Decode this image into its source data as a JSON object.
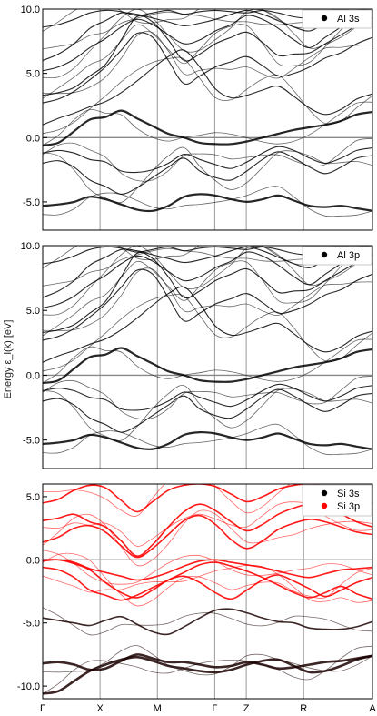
{
  "figure": {
    "ylabel": "Energy ε_i(k) [eV]",
    "kpoints": [
      "Γ",
      "X",
      "M",
      "Γ",
      "Z",
      "R",
      "A"
    ]
  },
  "chart_data": [
    {
      "type": "line",
      "title": "",
      "legend": [
        {
          "label": "Al 3s",
          "color": "#000000"
        }
      ],
      "legend_position": "top-right",
      "ylim": [
        -7.2,
        10.0
      ],
      "yticks": [
        "10.0",
        "5.0",
        "0.0",
        "-5.0"
      ],
      "ytick_values": [
        10,
        5,
        0,
        -5
      ],
      "fermi_level": 0,
      "kpoints": [
        "Γ",
        "X",
        "M",
        "Γ",
        "Z",
        "R",
        "A"
      ],
      "kpoint_positions": [
        0,
        1,
        2,
        3,
        3.55,
        4.55,
        5.75
      ],
      "series_color": "#000000",
      "bands": [
        [
          -0.6,
          -0.4,
          0.5,
          1.4,
          1.6,
          2.1,
          1.5,
          0.9,
          0.3,
          0.0,
          -0.4,
          -0.5,
          -0.5,
          -0.3,
          0.0,
          0.3,
          0.6,
          0.8,
          1.0,
          1.3,
          1.8,
          2.0
        ],
        [
          -5.3,
          -5.2,
          -5.0,
          -4.6,
          -4.8,
          -5.2,
          -5.6,
          -5.7,
          -5.3,
          -4.6,
          -4.4,
          -4.5,
          -4.8,
          -5.0,
          -4.8,
          -4.5,
          -4.9,
          -5.3,
          -5.4,
          -5.3,
          -5.5,
          -5.7
        ],
        [
          -2.0,
          -1.8,
          -2.3,
          -3.3,
          -3.8,
          -4.4,
          -3.9,
          -3.1,
          -2.3,
          -1.6,
          -2.6,
          -3.1,
          -3.3,
          -2.6,
          -1.7,
          -1.1,
          -1.6,
          -2.3,
          -2.8,
          -2.3,
          -1.6,
          -1.4
        ],
        [
          -1.2,
          -1.0,
          -1.2,
          -1.7,
          -1.9,
          -2.6,
          -2.7,
          -2.5,
          -2.0,
          -1.3,
          -1.7,
          -2.1,
          -2.4,
          -1.9,
          -1.2,
          -0.7,
          -1.0,
          -1.6,
          -2.0,
          -1.6,
          -1.0,
          -0.8
        ],
        [
          1.0,
          1.5,
          1.9,
          2.4,
          2.8,
          3.5,
          4.4,
          5.4,
          6.3,
          6.8,
          5.5,
          3.8,
          3.1,
          3.3,
          3.7,
          4.0,
          3.2,
          2.3,
          1.8,
          2.2,
          3.0,
          3.4
        ],
        [
          2.7,
          3.0,
          3.6,
          4.5,
          5.5,
          6.8,
          8.1,
          7.8,
          6.0,
          4.2,
          4.8,
          5.5,
          5.9,
          6.3,
          5.6,
          4.8,
          5.0,
          5.5,
          6.2,
          6.6,
          7.3,
          7.8
        ],
        [
          3.3,
          3.5,
          3.9,
          4.8,
          5.7,
          7.6,
          9.4,
          9.0,
          7.6,
          6.0,
          6.5,
          7.3,
          7.8,
          8.2,
          7.4,
          6.4,
          6.5,
          6.6,
          7.3,
          8.0,
          8.7,
          9.3
        ],
        [
          5.2,
          5.5,
          6.1,
          7.0,
          7.7,
          8.6,
          9.2,
          8.8,
          8.0,
          7.3,
          7.6,
          8.3,
          8.8,
          9.5,
          9.2,
          8.5,
          7.6,
          7.0,
          7.8,
          8.6,
          9.3,
          9.8
        ],
        [
          6.0,
          6.5,
          7.3,
          8.5,
          9.1,
          9.7,
          9.6,
          9.3,
          9.0,
          8.7,
          8.9,
          9.2,
          9.6,
          9.9,
          9.6,
          9.1,
          8.6,
          8.3,
          8.9,
          9.4,
          9.8,
          9.9
        ],
        [
          8.6,
          8.8,
          9.2,
          9.7,
          9.9,
          9.8,
          9.5,
          9.7,
          9.9,
          9.6,
          9.8,
          9.9,
          9.8,
          9.7,
          9.9,
          9.7,
          9.4,
          9.3,
          9.6,
          9.8,
          9.9,
          10.0
        ]
      ]
    },
    {
      "type": "line",
      "title": "",
      "legend": [
        {
          "label": "Al 3p",
          "color": "#000000"
        }
      ],
      "legend_position": "top-right",
      "ylim": [
        -7.2,
        10.0
      ],
      "yticks": [
        "10.0",
        "5.0",
        "0.0",
        "-5.0"
      ],
      "ytick_values": [
        10,
        5,
        0,
        -5
      ],
      "fermi_level": 0,
      "kpoints": [
        "Γ",
        "X",
        "M",
        "Γ",
        "Z",
        "R",
        "A"
      ],
      "kpoint_positions": [
        0,
        1,
        2,
        3,
        3.55,
        4.55,
        5.75
      ],
      "series_color": "#000000",
      "bands": [
        [
          -0.6,
          -0.4,
          0.5,
          1.4,
          1.6,
          2.1,
          1.5,
          0.9,
          0.3,
          0.0,
          -0.4,
          -0.5,
          -0.5,
          -0.3,
          0.0,
          0.3,
          0.6,
          0.8,
          1.0,
          1.3,
          1.8,
          2.0
        ],
        [
          -5.3,
          -5.2,
          -5.0,
          -4.6,
          -4.8,
          -5.2,
          -5.6,
          -5.7,
          -5.3,
          -4.6,
          -4.4,
          -4.5,
          -4.8,
          -5.0,
          -4.8,
          -4.5,
          -4.9,
          -5.3,
          -5.4,
          -5.3,
          -5.5,
          -5.7
        ],
        [
          -2.0,
          -1.8,
          -2.3,
          -3.3,
          -3.8,
          -4.4,
          -3.9,
          -3.1,
          -2.3,
          -1.6,
          -2.6,
          -3.1,
          -3.3,
          -2.6,
          -1.7,
          -1.1,
          -1.6,
          -2.3,
          -2.8,
          -2.3,
          -1.6,
          -1.4
        ],
        [
          -1.2,
          -1.0,
          -1.2,
          -1.7,
          -1.9,
          -2.6,
          -2.7,
          -2.5,
          -2.0,
          -1.3,
          -1.7,
          -2.1,
          -2.4,
          -1.9,
          -1.2,
          -0.7,
          -1.0,
          -1.6,
          -2.0,
          -1.6,
          -1.0,
          -0.8
        ],
        [
          1.0,
          1.5,
          1.9,
          2.4,
          2.8,
          3.5,
          4.4,
          5.4,
          6.3,
          6.8,
          5.5,
          3.8,
          3.1,
          3.3,
          3.7,
          4.0,
          3.2,
          2.3,
          1.8,
          2.2,
          3.0,
          3.4
        ],
        [
          2.7,
          3.0,
          3.6,
          4.5,
          5.5,
          6.8,
          8.1,
          7.8,
          6.0,
          4.2,
          4.8,
          5.5,
          5.9,
          6.3,
          5.6,
          4.8,
          5.0,
          5.5,
          6.2,
          6.6,
          7.3,
          7.8
        ],
        [
          3.3,
          3.5,
          3.9,
          4.8,
          5.7,
          7.6,
          9.4,
          9.0,
          7.6,
          6.0,
          6.5,
          7.3,
          7.8,
          8.2,
          7.4,
          6.4,
          6.5,
          6.6,
          7.3,
          8.0,
          8.7,
          9.3
        ],
        [
          5.2,
          5.5,
          6.1,
          7.0,
          7.7,
          8.6,
          9.2,
          8.8,
          8.0,
          7.3,
          7.6,
          8.3,
          8.8,
          9.5,
          9.2,
          8.5,
          7.6,
          7.0,
          7.8,
          8.6,
          9.3,
          9.8
        ],
        [
          6.0,
          6.5,
          7.3,
          8.5,
          9.1,
          9.7,
          9.6,
          9.3,
          9.0,
          8.7,
          8.9,
          9.2,
          9.6,
          9.9,
          9.6,
          9.1,
          8.6,
          8.3,
          8.9,
          9.4,
          9.8,
          9.9
        ],
        [
          8.6,
          8.8,
          9.2,
          9.7,
          9.9,
          9.8,
          9.5,
          9.7,
          9.9,
          9.6,
          9.8,
          9.9,
          9.8,
          9.7,
          9.9,
          9.7,
          9.4,
          9.3,
          9.6,
          9.8,
          9.9,
          10.0
        ]
      ]
    },
    {
      "type": "line",
      "title": "",
      "legend": [
        {
          "label": "Si 3s",
          "color": "#000000"
        },
        {
          "label": "Si 3p",
          "color": "#ff0000"
        }
      ],
      "legend_position": "top-right",
      "ylim": [
        -11.0,
        6.0
      ],
      "yticks": [
        "5.0",
        "0.0",
        "-5.0",
        "-10.0"
      ],
      "ytick_values": [
        5,
        0,
        -5,
        -10
      ],
      "fermi_level": 0,
      "kpoints": [
        "Γ",
        "X",
        "M",
        "Γ",
        "Z",
        "R",
        "A"
      ],
      "kpoint_positions": [
        0,
        1,
        2,
        3,
        3.55,
        4.55,
        5.75
      ],
      "series_color": "#ff0000",
      "dark_series_color": "#1a0000",
      "bands": [
        [
          -10.6,
          -10.4,
          -9.6,
          -8.8,
          -8.3,
          -7.9,
          -7.7,
          -8.0,
          -8.4,
          -8.6,
          -8.8,
          -8.9,
          -8.7,
          -8.3,
          -8.0,
          -7.9,
          -8.4,
          -8.9,
          -8.8,
          -8.4,
          -7.9,
          -7.6
        ],
        [
          -8.2,
          -8.1,
          -8.3,
          -8.7,
          -8.6,
          -8.0,
          -7.5,
          -7.8,
          -8.1,
          -8.1,
          -8.3,
          -8.5,
          -8.4,
          -8.1,
          -8.3,
          -8.6,
          -8.5,
          -8.3,
          -8.1,
          -8.0,
          -7.8,
          -7.6
        ],
        [
          -4.6,
          -4.8,
          -5.0,
          -5.2,
          -4.8,
          -4.5,
          -5.1,
          -5.7,
          -5.9,
          -5.3,
          -4.6,
          -4.0,
          -3.9,
          -4.2,
          -4.6,
          -4.9,
          -5.0,
          -5.4,
          -5.5,
          -5.5,
          -5.3,
          -4.9
        ],
        [
          -0.1,
          0.0,
          -0.3,
          -0.8,
          -1.8,
          -2.6,
          -3.0,
          -2.4,
          -1.6,
          -1.3,
          -1.8,
          -2.6,
          -3.1,
          -2.4,
          -1.6,
          -1.2,
          -1.7,
          -2.3,
          -2.9,
          -2.4,
          -1.8,
          -1.4
        ],
        [
          -0.6,
          -0.8,
          -1.4,
          -2.4,
          -2.8,
          -3.2,
          -2.8,
          -2.2,
          -1.6,
          -1.0,
          -0.4,
          -0.2,
          -0.5,
          -0.9,
          -1.4,
          -2.0,
          -2.6,
          -3.0,
          -2.6,
          -2.1,
          -2.7,
          -3.1
        ],
        [
          0.0,
          0.0,
          -0.2,
          -0.7,
          -1.0,
          -1.3,
          -1.6,
          -1.4,
          -1.0,
          -0.5,
          -0.1,
          0.0,
          -0.2,
          -0.4,
          -0.6,
          -0.9,
          -1.2,
          -1.4,
          -1.1,
          -0.8,
          -0.7,
          -0.6
        ],
        [
          1.4,
          1.8,
          2.5,
          2.7,
          2.2,
          1.1,
          0.2,
          0.9,
          2.0,
          3.1,
          3.5,
          2.8,
          1.6,
          0.9,
          1.5,
          2.4,
          2.9,
          3.2,
          3.0,
          2.6,
          2.2,
          2.0
        ],
        [
          3.1,
          3.3,
          3.6,
          3.0,
          2.6,
          1.5,
          0.3,
          1.2,
          2.6,
          3.8,
          4.4,
          3.9,
          3.0,
          2.3,
          2.8,
          3.6,
          4.1,
          4.4,
          4.0,
          3.6,
          3.0,
          2.6
        ],
        [
          4.5,
          4.8,
          5.5,
          5.9,
          5.7,
          4.7,
          3.8,
          4.6,
          5.5,
          5.9,
          6.0,
          5.8,
          5.2,
          4.6,
          5.0,
          5.6,
          5.9,
          6.0,
          5.8,
          5.4,
          4.9,
          4.5
        ]
      ]
    }
  ]
}
